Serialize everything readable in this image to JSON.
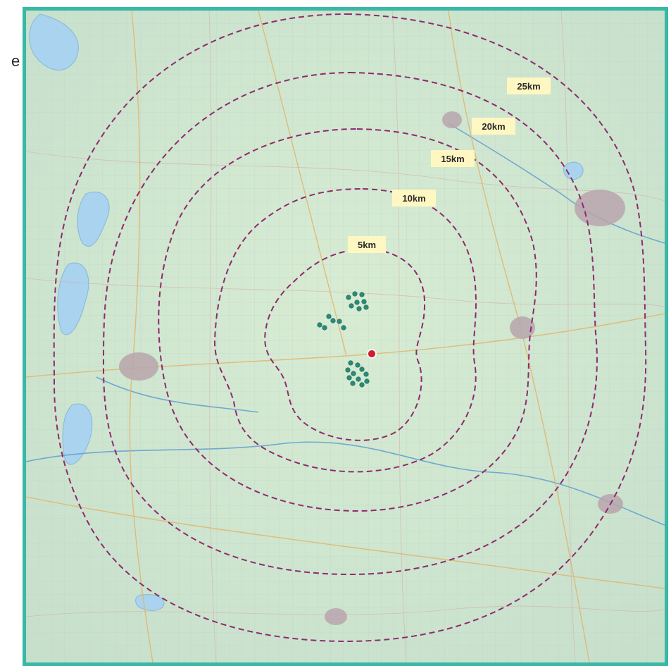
{
  "edge_text": "e",
  "map": {
    "frame_color": "#38b8a7",
    "ring_color": "#8e2a6f",
    "site_color": "#cf1f2d",
    "turbine_color": "#2b8a77",
    "water_color": "#a9d3ef",
    "rings": [
      {
        "label": "5km"
      },
      {
        "label": "10km"
      },
      {
        "label": "15km"
      },
      {
        "label": "20km"
      },
      {
        "label": "25km"
      }
    ],
    "icons": {
      "site_marker": "red-dot-icon",
      "turbine": "turbine-dot-icon"
    }
  }
}
